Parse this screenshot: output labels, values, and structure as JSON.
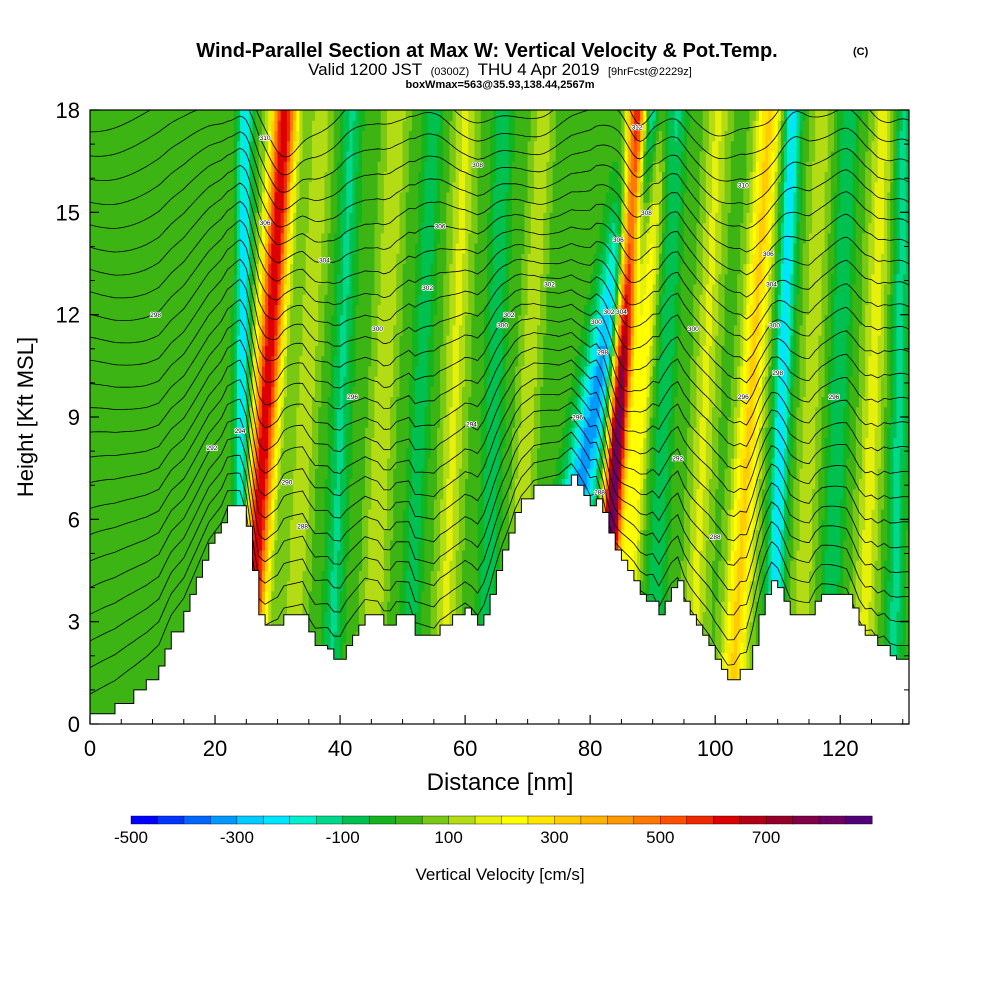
{
  "chart_data": {
    "type": "heatmap",
    "title": "Wind-Parallel Section at Max W: Vertical Velocity & Pot.Temp.",
    "title_mark": "(C)",
    "subtitle_main": "Valid 1200 JST",
    "subtitle_utc": "(0300Z)",
    "subtitle_date": "THU 4 Apr 2019",
    "subtitle_fcst": "[9hrFcst@2229z]",
    "subtitle2": "boxWmax=563@35.93,138.44,2567m",
    "xlabel": "Distance [nm]",
    "ylabel": "Height [Kft MSL]",
    "xlim": [
      0,
      131
    ],
    "ylim": [
      0,
      18
    ],
    "x_ticks": [
      0,
      20,
      40,
      60,
      80,
      100,
      120
    ],
    "y_ticks": [
      0,
      3,
      6,
      9,
      12,
      15,
      18
    ],
    "x_tick_labels": [
      "0",
      "20",
      "40",
      "60",
      "80",
      "100",
      "120"
    ],
    "y_tick_labels": [
      "0",
      "3",
      "6",
      "9",
      "12",
      "15",
      "18"
    ],
    "grid": false,
    "terrain_kft": [
      [
        0,
        0.3
      ],
      [
        4,
        0.6
      ],
      [
        7,
        1.0
      ],
      [
        9,
        1.3
      ],
      [
        11,
        1.7
      ],
      [
        12,
        2.2
      ],
      [
        13,
        2.7
      ],
      [
        15,
        3.3
      ],
      [
        16,
        3.8
      ],
      [
        17,
        4.3
      ],
      [
        18,
        4.8
      ],
      [
        19,
        5.3
      ],
      [
        20,
        5.6
      ],
      [
        21,
        5.9
      ],
      [
        22,
        6.4
      ],
      [
        24,
        6.4
      ],
      [
        25,
        5.8
      ],
      [
        26,
        4.5
      ],
      [
        27,
        3.2
      ],
      [
        28,
        2.9
      ],
      [
        30,
        2.9
      ],
      [
        31,
        3.2
      ],
      [
        34,
        3.2
      ],
      [
        35,
        2.7
      ],
      [
        36,
        2.3
      ],
      [
        38,
        2.2
      ],
      [
        39,
        1.9
      ],
      [
        40,
        1.9
      ],
      [
        41,
        2.3
      ],
      [
        42,
        2.6
      ],
      [
        43,
        2.9
      ],
      [
        44,
        3.2
      ],
      [
        46,
        3.2
      ],
      [
        47,
        2.9
      ],
      [
        48,
        2.9
      ],
      [
        49,
        3.2
      ],
      [
        51,
        3.2
      ],
      [
        52,
        2.6
      ],
      [
        55,
        2.6
      ],
      [
        56,
        2.9
      ],
      [
        58,
        3.2
      ],
      [
        60,
        3.4
      ],
      [
        61,
        3.2
      ],
      [
        62,
        2.9
      ],
      [
        63,
        3.2
      ],
      [
        64,
        3.8
      ],
      [
        65,
        4.5
      ],
      [
        66,
        5.1
      ],
      [
        67,
        5.6
      ],
      [
        68,
        6.2
      ],
      [
        69,
        6.6
      ],
      [
        71,
        7.0
      ],
      [
        75,
        7.0
      ],
      [
        77,
        7.3
      ],
      [
        78,
        7.0
      ],
      [
        79,
        6.7
      ],
      [
        80,
        6.4
      ],
      [
        81,
        6.6
      ],
      [
        82,
        6.2
      ],
      [
        83,
        5.6
      ],
      [
        84,
        5.1
      ],
      [
        85,
        4.8
      ],
      [
        86,
        4.5
      ],
      [
        87,
        4.2
      ],
      [
        88,
        3.8
      ],
      [
        89,
        3.6
      ],
      [
        90,
        3.6
      ],
      [
        91,
        3.2
      ],
      [
        92,
        3.6
      ],
      [
        93,
        4.0
      ],
      [
        94,
        4.2
      ],
      [
        95,
        3.6
      ],
      [
        96,
        3.2
      ],
      [
        97,
        2.9
      ],
      [
        98,
        2.6
      ],
      [
        99,
        2.3
      ],
      [
        100,
        1.9
      ],
      [
        101,
        1.6
      ],
      [
        102,
        1.3
      ],
      [
        103,
        1.3
      ],
      [
        104,
        1.6
      ],
      [
        105,
        1.6
      ],
      [
        106,
        2.3
      ],
      [
        107,
        3.2
      ],
      [
        108,
        3.8
      ],
      [
        109,
        4.2
      ],
      [
        110,
        4.0
      ],
      [
        111,
        3.6
      ],
      [
        112,
        3.2
      ],
      [
        115,
        3.2
      ],
      [
        116,
        3.6
      ],
      [
        117,
        3.8
      ],
      [
        121,
        3.8
      ],
      [
        122,
        3.4
      ],
      [
        123,
        2.9
      ],
      [
        124,
        2.6
      ],
      [
        125,
        2.6
      ],
      [
        126,
        2.3
      ],
      [
        127,
        2.3
      ],
      [
        128,
        2.0
      ],
      [
        129,
        1.9
      ],
      [
        131,
        1.9
      ]
    ],
    "w_features": [
      {
        "x": 27.0,
        "tilt": 0.35,
        "w": 620,
        "width": 2.0
      },
      {
        "x": 24.2,
        "tilt": 0.05,
        "w": -260,
        "width": 1.2
      },
      {
        "x": 33.5,
        "tilt": 0.3,
        "w": 110,
        "width": 1.8
      },
      {
        "x": 39.5,
        "tilt": 0.2,
        "w": -140,
        "width": 1.6
      },
      {
        "x": 46.0,
        "tilt": 0.25,
        "w": 120,
        "width": 1.8
      },
      {
        "x": 52.0,
        "tilt": 0.25,
        "w": -110,
        "width": 1.6
      },
      {
        "x": 57.5,
        "tilt": 0.22,
        "w": 130,
        "width": 1.8
      },
      {
        "x": 64.0,
        "tilt": 0.18,
        "w": -120,
        "width": 1.6
      },
      {
        "x": 69.0,
        "tilt": 0.3,
        "w": 110,
        "width": 1.6
      },
      {
        "x": 77.5,
        "tilt": 1.0,
        "w": -360,
        "width": 2.8
      },
      {
        "x": 83.5,
        "tilt": 0.35,
        "w": 820,
        "width": 1.6
      },
      {
        "x": 87.0,
        "tilt": 0.35,
        "w": 200,
        "width": 1.4
      },
      {
        "x": 91.0,
        "tilt": 0.25,
        "w": -120,
        "width": 1.6
      },
      {
        "x": 97.5,
        "tilt": 0.25,
        "w": 130,
        "width": 1.8
      },
      {
        "x": 104.5,
        "tilt": 0.35,
        "w": 280,
        "width": 2.0
      },
      {
        "x": 110.0,
        "tilt": 0.2,
        "w": -260,
        "width": 1.4
      },
      {
        "x": 114.5,
        "tilt": 0.22,
        "w": 100,
        "width": 1.8
      },
      {
        "x": 119.0,
        "tilt": 0.2,
        "w": -130,
        "width": 1.6
      },
      {
        "x": 124.5,
        "tilt": 0.2,
        "w": 140,
        "width": 1.8
      },
      {
        "x": 129.0,
        "tilt": 0.1,
        "w": -150,
        "width": 1.4
      }
    ],
    "colorbar": {
      "label": "Vertical Velocity [cm/s]",
      "tick_labels": [
        "-500",
        "-300",
        "-100",
        "100",
        "300",
        "500",
        "700"
      ],
      "tick_values": [
        -500,
        -300,
        -100,
        100,
        300,
        500,
        700
      ],
      "min": -500,
      "max": 850,
      "step": 50,
      "colors": [
        "#0000ff",
        "#0033ff",
        "#0066ff",
        "#0099ff",
        "#00ccff",
        "#00e5ff",
        "#00f0cc",
        "#00d98c",
        "#00c050",
        "#14b41e",
        "#3cb414",
        "#78c814",
        "#b4dc14",
        "#e6f00a",
        "#ffff00",
        "#ffe600",
        "#ffcc00",
        "#ffb400",
        "#ff9900",
        "#ff7800",
        "#ff5000",
        "#f02800",
        "#dc0000",
        "#b40014",
        "#960028",
        "#820046",
        "#6e0064",
        "#500078"
      ]
    },
    "theta_isolines": {
      "unit": "K",
      "labeled": [
        {
          "x": 10.5,
          "y": 12.0,
          "label": "298"
        },
        {
          "x": 19.5,
          "y": 8.1,
          "label": "292"
        },
        {
          "x": 24.0,
          "y": 8.6,
          "label": "294"
        },
        {
          "x": 28.0,
          "y": 14.7,
          "label": "306"
        },
        {
          "x": 28.0,
          "y": 17.2,
          "label": "310"
        },
        {
          "x": 31.5,
          "y": 7.1,
          "label": "290"
        },
        {
          "x": 34.0,
          "y": 5.8,
          "label": "288"
        },
        {
          "x": 37.5,
          "y": 13.6,
          "label": "304"
        },
        {
          "x": 42.0,
          "y": 9.6,
          "label": "296"
        },
        {
          "x": 46.0,
          "y": 11.6,
          "label": "300"
        },
        {
          "x": 54.0,
          "y": 12.8,
          "label": "302"
        },
        {
          "x": 56.0,
          "y": 14.6,
          "label": "306"
        },
        {
          "x": 61.0,
          "y": 8.8,
          "label": "294"
        },
        {
          "x": 62.0,
          "y": 16.4,
          "label": "308"
        },
        {
          "x": 66.0,
          "y": 11.7,
          "label": "300"
        },
        {
          "x": 67.0,
          "y": 12.0,
          "label": "302"
        },
        {
          "x": 73.5,
          "y": 12.9,
          "label": "302"
        },
        {
          "x": 78.0,
          "y": 9.0,
          "label": "296"
        },
        {
          "x": 81.0,
          "y": 11.8,
          "label": "300"
        },
        {
          "x": 81.5,
          "y": 6.8,
          "label": "288"
        },
        {
          "x": 82.0,
          "y": 10.9,
          "label": "298"
        },
        {
          "x": 83.0,
          "y": 12.1,
          "label": "302"
        },
        {
          "x": 84.5,
          "y": 14.2,
          "label": "306"
        },
        {
          "x": 85.0,
          "y": 12.1,
          "label": "304"
        },
        {
          "x": 87.5,
          "y": 17.5,
          "label": "312"
        },
        {
          "x": 89.0,
          "y": 15.0,
          "label": "308"
        },
        {
          "x": 94.0,
          "y": 7.8,
          "label": "292"
        },
        {
          "x": 96.5,
          "y": 11.6,
          "label": "300"
        },
        {
          "x": 100.0,
          "y": 5.5,
          "label": "288"
        },
        {
          "x": 104.5,
          "y": 9.6,
          "label": "296"
        },
        {
          "x": 104.5,
          "y": 15.8,
          "label": "310"
        },
        {
          "x": 108.5,
          "y": 13.8,
          "label": "306"
        },
        {
          "x": 109.0,
          "y": 12.9,
          "label": "304"
        },
        {
          "x": 109.5,
          "y": 11.7,
          "label": "300"
        },
        {
          "x": 110.0,
          "y": 10.3,
          "label": "298"
        },
        {
          "x": 119.0,
          "y": 9.6,
          "label": "296"
        }
      ]
    }
  }
}
